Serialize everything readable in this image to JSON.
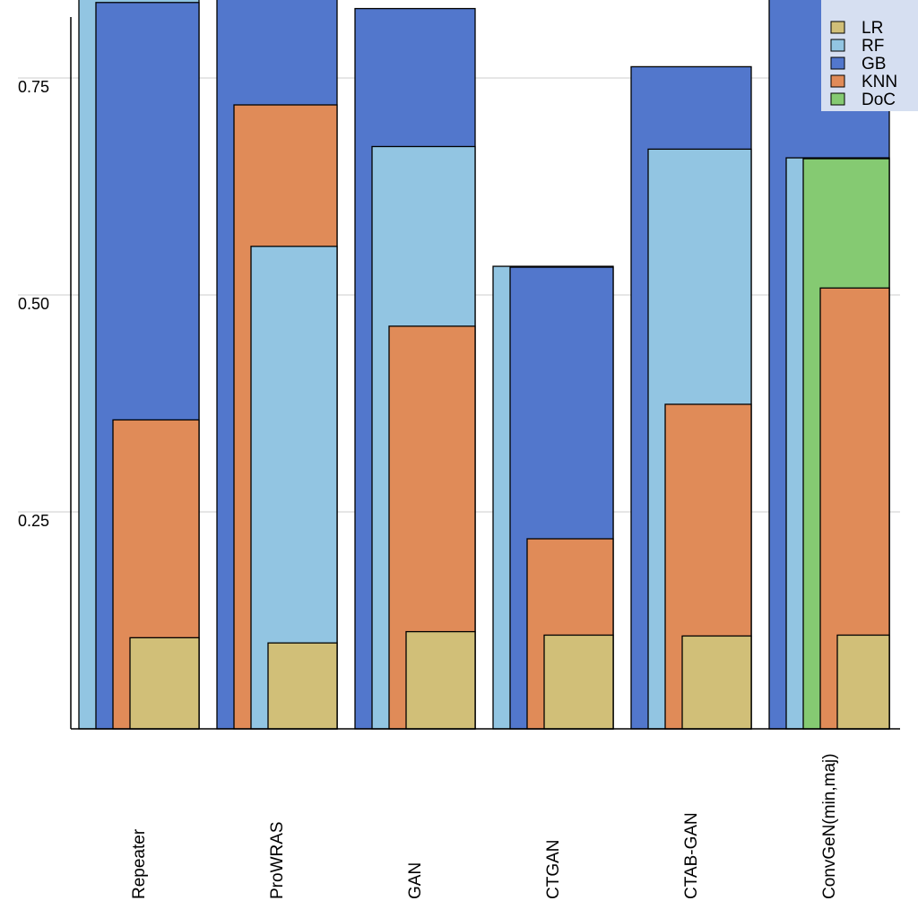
{
  "chart_data": {
    "type": "bar",
    "subtype": "overlapping-stepped",
    "title": "",
    "xlabel": "",
    "ylabel": "",
    "ylim": [
      0,
      0.84
    ],
    "yticks": [
      0.25,
      0.5,
      0.75
    ],
    "ytick_labels": [
      "0.25",
      "0.50",
      "0.75"
    ],
    "grid": "horizontal",
    "legend_position": "top-right",
    "categories": [
      "Repeater",
      "ProWRAS",
      "GAN",
      "CTGAN",
      "CTAB-GAN",
      "ConvGeN(min,maj)"
    ],
    "series": [
      {
        "name": "LR",
        "color": "#d1bf78",
        "values": [
          0.105,
          0.099,
          0.112,
          0.108,
          0.107,
          0.108
        ]
      },
      {
        "name": "RF",
        "color": "#92c5e2",
        "values": [
          0.9,
          0.556,
          0.671,
          0.533,
          0.668,
          0.658
        ]
      },
      {
        "name": "GB",
        "color": "#5277cc",
        "values": [
          0.837,
          0.9,
          0.83,
          0.532,
          0.763,
          0.9
        ]
      },
      {
        "name": "KNN",
        "color": "#e08b58",
        "values": [
          0.356,
          0.719,
          0.464,
          0.219,
          0.374,
          0.508
        ]
      },
      {
        "name": "DoC",
        "color": "#85ca72",
        "values": [
          null,
          null,
          null,
          null,
          null,
          0.657
        ]
      }
    ],
    "notes": "Values >= 0.84 are clipped at the top of the image (Repeater RF, ProWRAS GB, ConvGeN GB); shown as 0.9 estimate."
  }
}
